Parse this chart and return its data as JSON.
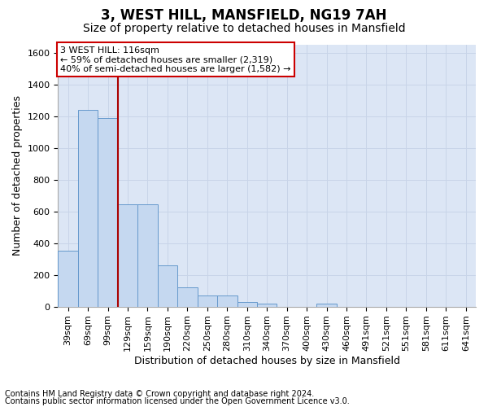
{
  "title": "3, WEST HILL, MANSFIELD, NG19 7AH",
  "subtitle": "Size of property relative to detached houses in Mansfield",
  "xlabel": "Distribution of detached houses by size in Mansfield",
  "ylabel": "Number of detached properties",
  "footnote1": "Contains HM Land Registry data © Crown copyright and database right 2024.",
  "footnote2": "Contains public sector information licensed under the Open Government Licence v3.0.",
  "categories": [
    "39sqm",
    "69sqm",
    "99sqm",
    "129sqm",
    "159sqm",
    "190sqm",
    "220sqm",
    "250sqm",
    "280sqm",
    "310sqm",
    "340sqm",
    "370sqm",
    "400sqm",
    "430sqm",
    "460sqm",
    "491sqm",
    "521sqm",
    "551sqm",
    "581sqm",
    "611sqm",
    "641sqm"
  ],
  "values": [
    350,
    1240,
    1190,
    645,
    645,
    260,
    120,
    70,
    70,
    30,
    20,
    0,
    0,
    20,
    0,
    0,
    0,
    0,
    0,
    0,
    0
  ],
  "bar_color": "#c5d8f0",
  "bar_edge_color": "#6699cc",
  "ylim_max": 1650,
  "yticks": [
    0,
    200,
    400,
    600,
    800,
    1000,
    1200,
    1400,
    1600
  ],
  "property_label": "3 WEST HILL: 116sqm",
  "annotation_line1": "← 59% of detached houses are smaller (2,319)",
  "annotation_line2": "40% of semi-detached houses are larger (1,582) →",
  "annotation_border_color": "#cc0000",
  "vline_color": "#aa0000",
  "vline_x_index": 2.5,
  "grid_color": "#c8d4e8",
  "background_color": "#dce6f5",
  "title_fontsize": 12,
  "subtitle_fontsize": 10,
  "ylabel_fontsize": 9,
  "xlabel_fontsize": 9,
  "tick_fontsize": 8,
  "annot_fontsize": 8,
  "footnote_fontsize": 7
}
